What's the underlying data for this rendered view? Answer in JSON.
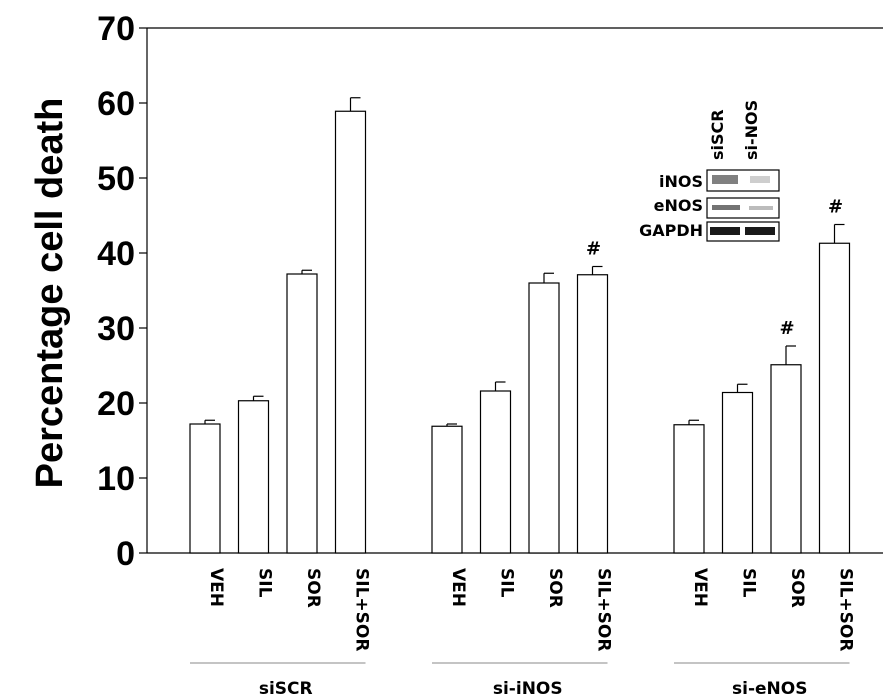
{
  "chart_data": {
    "type": "bar",
    "ylabel": "Percentage cell death",
    "xlabel": "",
    "ylim": [
      0,
      70
    ],
    "yticks": [
      0,
      10,
      20,
      30,
      40,
      50,
      60,
      70
    ],
    "grid": false,
    "groups": [
      {
        "label": "siSCR",
        "bars": [
          {
            "category": "VEH",
            "value": 17.2,
            "error": 0.5,
            "annotation": ""
          },
          {
            "category": "SIL",
            "value": 20.3,
            "error": 0.6,
            "annotation": ""
          },
          {
            "category": "SOR",
            "value": 37.2,
            "error": 0.5,
            "annotation": ""
          },
          {
            "category": "SIL+SOR",
            "value": 58.9,
            "error": 1.8,
            "annotation": ""
          }
        ]
      },
      {
        "label": "si-iNOS",
        "bars": [
          {
            "category": "VEH",
            "value": 16.9,
            "error": 0.3,
            "annotation": ""
          },
          {
            "category": "SIL",
            "value": 21.6,
            "error": 1.2,
            "annotation": ""
          },
          {
            "category": "SOR",
            "value": 36.0,
            "error": 1.3,
            "annotation": ""
          },
          {
            "category": "SIL+SOR",
            "value": 37.1,
            "error": 1.1,
            "annotation": "#"
          }
        ]
      },
      {
        "label": "si-eNOS",
        "bars": [
          {
            "category": "VEH",
            "value": 17.1,
            "error": 0.6,
            "annotation": ""
          },
          {
            "category": "SIL",
            "value": 21.4,
            "error": 1.1,
            "annotation": ""
          },
          {
            "category": "SOR",
            "value": 25.1,
            "error": 2.5,
            "annotation": "#"
          },
          {
            "category": "SIL+SOR",
            "value": 41.3,
            "error": 2.5,
            "annotation": "#"
          }
        ]
      }
    ],
    "inset_blot": {
      "lane_labels": [
        "siSCR",
        "si-NOS"
      ],
      "row_labels": [
        "iNOS",
        "eNOS",
        "GAPDH"
      ]
    }
  }
}
